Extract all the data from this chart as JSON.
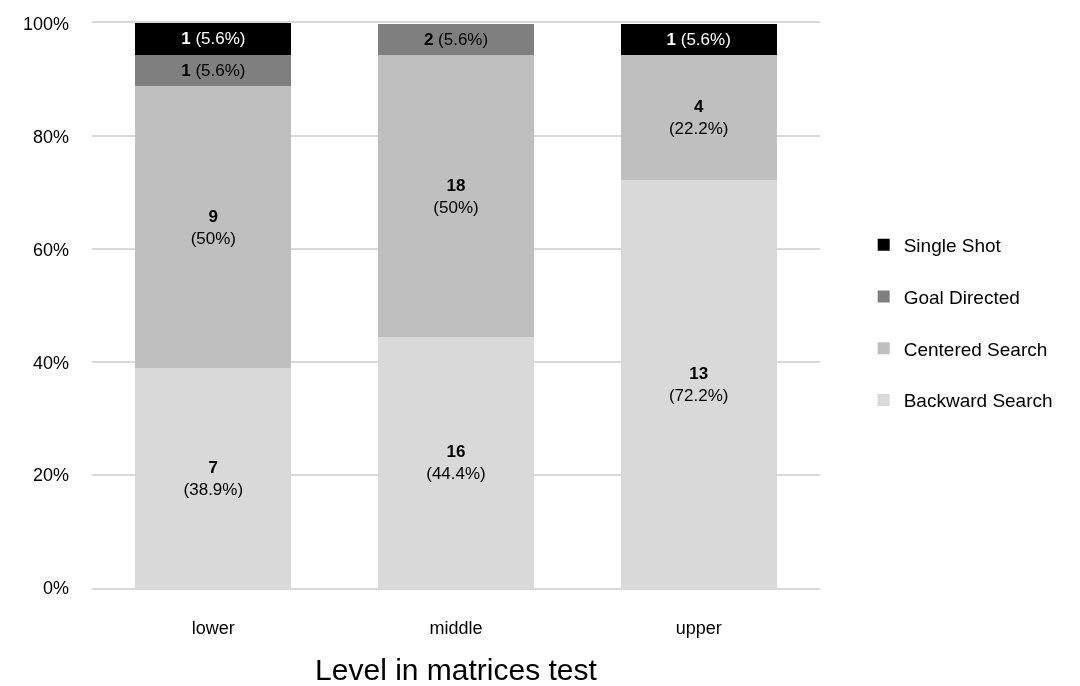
{
  "chart_data": {
    "type": "bar",
    "stacked": true,
    "xlabel": "Level in matrices test",
    "categories": [
      "lower",
      "middle",
      "upper"
    ],
    "series": [
      {
        "name": "Backward Search",
        "color": "#d9d9d9",
        "values": [
          38.9,
          44.4,
          72.2
        ],
        "value_labels": [
          "7\n(38.9%)",
          "16\n(44.4%)",
          "13\n(72.2%)"
        ]
      },
      {
        "name": "Centered Search",
        "color": "#bfbfbf",
        "values": [
          50,
          50,
          22.2
        ],
        "value_labels": [
          "9\n(50%)",
          "18\n(50%)",
          "4\n(22.2%)"
        ]
      },
      {
        "name": "Goal Directed",
        "color": "#7f7f7f",
        "values": [
          5.6,
          5.6,
          null
        ],
        "value_labels": [
          "1 (5.6%)",
          "2 (5.6%)",
          null
        ]
      },
      {
        "name": "Single Shot",
        "color": "#000000",
        "values": [
          5.6,
          null,
          5.6
        ],
        "value_labels": [
          "1 (5.6%)",
          null,
          "1 (5.6%)"
        ]
      }
    ],
    "ylim": [
      0,
      100.1
    ],
    "yticks": [
      {
        "value": 0,
        "label": "0%"
      },
      {
        "value": 20,
        "label": "20%"
      },
      {
        "value": 40,
        "label": "40%"
      },
      {
        "value": 60,
        "label": "60%"
      },
      {
        "value": 80,
        "label": "80%"
      },
      {
        "value": 100,
        "label": "100%"
      }
    ],
    "grid": "y",
    "legend": "right"
  }
}
